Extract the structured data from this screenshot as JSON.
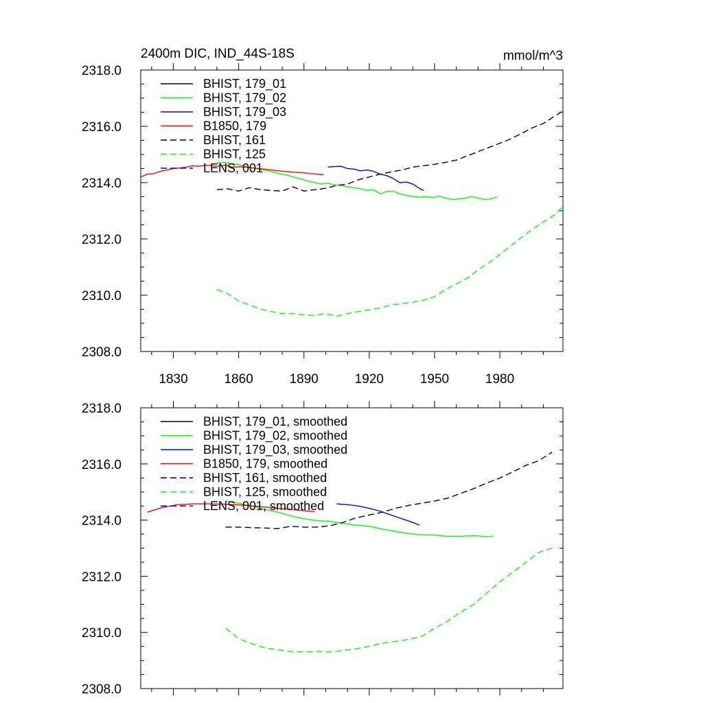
{
  "chart_data": [
    {
      "type": "line",
      "title": "2400m DIC, IND_44S-18S",
      "units": "mmol/m^3",
      "xlabel": "",
      "ylabel": "",
      "xlim": [
        1815,
        2009
      ],
      "ylim": [
        2308.0,
        2318.0
      ],
      "x_ticks": [
        1830,
        1860,
        1890,
        1920,
        1950,
        1980
      ],
      "y_ticks": [
        "2308.0",
        "2310.0",
        "2312.0",
        "2314.0",
        "2316.0",
        "2318.0"
      ],
      "grid": false,
      "legend_position": "top-left",
      "series": [
        {
          "name": "BHIST, 179_01",
          "color": "#000000",
          "dash": "solid",
          "x": [],
          "y": []
        },
        {
          "name": "BHIST, 179_02",
          "color": "#00ff00",
          "dash": "solid",
          "x": [
            1850,
            1853,
            1856,
            1859,
            1862,
            1865,
            1868,
            1871,
            1874,
            1877,
            1880,
            1883,
            1886,
            1889,
            1892,
            1895,
            1898,
            1901,
            1904,
            1907,
            1910,
            1913,
            1916,
            1919,
            1922,
            1925,
            1928,
            1931,
            1934,
            1937,
            1940,
            1943,
            1946,
            1949,
            1952,
            1955,
            1958,
            1961,
            1964,
            1967,
            1970,
            1973,
            1976,
            1979
          ],
          "y": [
            2314.7,
            2314.72,
            2314.68,
            2314.65,
            2314.6,
            2314.55,
            2314.5,
            2314.45,
            2314.42,
            2314.35,
            2314.3,
            2314.25,
            2314.18,
            2314.12,
            2314.05,
            2314.0,
            2313.95,
            2313.98,
            2313.92,
            2313.9,
            2313.85,
            2313.82,
            2313.78,
            2313.72,
            2313.75,
            2313.6,
            2313.68,
            2313.7,
            2313.6,
            2313.55,
            2313.5,
            2313.48,
            2313.5,
            2313.46,
            2313.52,
            2313.45,
            2313.4,
            2313.42,
            2313.45,
            2313.5,
            2313.45,
            2313.4,
            2313.42,
            2313.5
          ]
        },
        {
          "name": "BHIST, 179_03",
          "color": "#0000ff",
          "dash": "solid",
          "x": [
            1901,
            1904,
            1907,
            1910,
            1913,
            1916,
            1919,
            1922,
            1925,
            1928,
            1931,
            1934,
            1937,
            1940,
            1943,
            1945
          ],
          "y": [
            2314.55,
            2314.57,
            2314.58,
            2314.5,
            2314.48,
            2314.42,
            2314.45,
            2314.4,
            2314.3,
            2314.25,
            2314.15,
            2314.0,
            2314.02,
            2313.95,
            2313.8,
            2313.72
          ]
        },
        {
          "name": "B1850, 179",
          "color": "#ff0000",
          "dash": "solid",
          "x": [
            1815,
            1818,
            1821,
            1824,
            1827,
            1830,
            1833,
            1836,
            1839,
            1842,
            1845,
            1848,
            1851,
            1854,
            1857,
            1860,
            1863,
            1866,
            1869,
            1872,
            1875,
            1878,
            1881,
            1884,
            1887,
            1890,
            1893,
            1896,
            1899
          ],
          "y": [
            2314.2,
            2314.3,
            2314.32,
            2314.4,
            2314.45,
            2314.5,
            2314.52,
            2314.55,
            2314.6,
            2314.58,
            2314.62,
            2314.6,
            2314.58,
            2314.62,
            2314.55,
            2314.56,
            2314.55,
            2314.52,
            2314.5,
            2314.48,
            2314.45,
            2314.42,
            2314.4,
            2314.38,
            2314.36,
            2314.35,
            2314.32,
            2314.3,
            2314.28
          ]
        },
        {
          "name": "BHIST, 161",
          "color": "#000000",
          "dash": "dashed",
          "x": [
            1850,
            1855,
            1860,
            1865,
            1870,
            1875,
            1880,
            1885,
            1890,
            1895,
            1900,
            1905,
            1910,
            1915,
            1920,
            1925,
            1930,
            1935,
            1940,
            1945,
            1950,
            1955,
            1960,
            1965,
            1970,
            1975,
            1980,
            1985,
            1990,
            1995,
            2000,
            2005,
            2009
          ],
          "y": [
            2313.75,
            2313.78,
            2313.7,
            2313.82,
            2313.75,
            2313.72,
            2313.7,
            2313.85,
            2313.7,
            2313.75,
            2313.8,
            2313.9,
            2313.95,
            2314.1,
            2314.2,
            2314.3,
            2314.38,
            2314.45,
            2314.55,
            2314.6,
            2314.65,
            2314.72,
            2314.8,
            2314.95,
            2315.1,
            2315.25,
            2315.4,
            2315.55,
            2315.75,
            2315.95,
            2316.1,
            2316.35,
            2316.55
          ]
        },
        {
          "name": "BHIST, 125",
          "color": "#00ff00",
          "dash": "dashed",
          "x": [
            1850,
            1855,
            1860,
            1865,
            1870,
            1875,
            1880,
            1885,
            1890,
            1895,
            1900,
            1905,
            1910,
            1915,
            1920,
            1925,
            1930,
            1935,
            1940,
            1945,
            1950,
            1955,
            1960,
            1965,
            1970,
            1975,
            1980,
            1985,
            1990,
            1995,
            2000,
            2005,
            2009
          ],
          "y": [
            2310.2,
            2310.05,
            2309.8,
            2309.65,
            2309.5,
            2309.42,
            2309.35,
            2309.35,
            2309.3,
            2309.28,
            2309.35,
            2309.25,
            2309.35,
            2309.42,
            2309.48,
            2309.55,
            2309.65,
            2309.7,
            2309.75,
            2309.82,
            2309.95,
            2310.2,
            2310.4,
            2310.6,
            2310.9,
            2311.15,
            2311.45,
            2311.75,
            2312.05,
            2312.35,
            2312.6,
            2312.85,
            2313.15
          ]
        },
        {
          "name": "LENS, 001",
          "color": "#0000ff",
          "dash": "dashed",
          "x": [],
          "y": []
        }
      ]
    },
    {
      "type": "line",
      "title": "",
      "xlabel": "",
      "ylabel": "",
      "xlim": [
        1815,
        2009
      ],
      "ylim": [
        2308.0,
        2318.0
      ],
      "x_ticks": [
        1830,
        1860,
        1890,
        1920,
        1950,
        1980
      ],
      "y_ticks": [
        "2308.0",
        "2310.0",
        "2312.0",
        "2314.0",
        "2316.0",
        "2318.0"
      ],
      "grid": false,
      "legend_position": "top-left",
      "series": [
        {
          "name": "BHIST, 179_01, smoothed",
          "color": "#000000",
          "dash": "solid",
          "x": [],
          "y": []
        },
        {
          "name": "BHIST, 179_02, smoothed",
          "color": "#00ff00",
          "dash": "solid",
          "x": [
            1854,
            1860,
            1866,
            1872,
            1878,
            1884,
            1890,
            1896,
            1902,
            1908,
            1914,
            1920,
            1926,
            1932,
            1938,
            1944,
            1950,
            1956,
            1962,
            1968,
            1974,
            1977
          ],
          "y": [
            2314.68,
            2314.6,
            2314.5,
            2314.38,
            2314.28,
            2314.15,
            2314.05,
            2313.98,
            2313.95,
            2313.88,
            2313.82,
            2313.78,
            2313.68,
            2313.6,
            2313.52,
            2313.48,
            2313.47,
            2313.42,
            2313.42,
            2313.45,
            2313.4,
            2313.43
          ]
        },
        {
          "name": "BHIST, 179_03, smoothed",
          "color": "#0000ff",
          "dash": "solid",
          "x": [
            1905,
            1910,
            1915,
            1920,
            1925,
            1930,
            1935,
            1940,
            1943
          ],
          "y": [
            2314.58,
            2314.55,
            2314.5,
            2314.42,
            2314.32,
            2314.18,
            2314.05,
            2313.92,
            2313.82
          ]
        },
        {
          "name": "B1850, 179, smoothed",
          "color": "#ff0000",
          "dash": "solid",
          "x": [
            1818,
            1825,
            1832,
            1839,
            1846,
            1853,
            1860,
            1867,
            1874,
            1881,
            1888,
            1895
          ],
          "y": [
            2314.28,
            2314.45,
            2314.55,
            2314.58,
            2314.58,
            2314.57,
            2314.54,
            2314.5,
            2314.45,
            2314.4,
            2314.35,
            2314.3
          ]
        },
        {
          "name": "BHIST, 161, smoothed",
          "color": "#000000",
          "dash": "dashed",
          "x": [
            1854,
            1860,
            1866,
            1872,
            1878,
            1884,
            1890,
            1896,
            1902,
            1908,
            1914,
            1920,
            1926,
            1932,
            1938,
            1944,
            1950,
            1956,
            1962,
            1968,
            1974,
            1980,
            1986,
            1992,
            1998,
            2004
          ],
          "y": [
            2313.75,
            2313.75,
            2313.73,
            2313.72,
            2313.7,
            2313.78,
            2313.75,
            2313.75,
            2313.8,
            2313.92,
            2314.08,
            2314.18,
            2314.28,
            2314.42,
            2314.52,
            2314.6,
            2314.68,
            2314.78,
            2314.95,
            2315.12,
            2315.32,
            2315.5,
            2315.72,
            2315.95,
            2316.12,
            2316.42
          ]
        },
        {
          "name": "BHIST, 125, smoothed",
          "color": "#00ff00",
          "dash": "dashed",
          "x": [
            1854,
            1860,
            1866,
            1872,
            1878,
            1884,
            1890,
            1896,
            1902,
            1908,
            1914,
            1920,
            1926,
            1932,
            1938,
            1944,
            1950,
            1956,
            1962,
            1968,
            1974,
            1980,
            1986,
            1992,
            1998,
            2004
          ],
          "y": [
            2310.15,
            2309.78,
            2309.6,
            2309.45,
            2309.38,
            2309.32,
            2309.3,
            2309.32,
            2309.3,
            2309.36,
            2309.42,
            2309.5,
            2309.62,
            2309.68,
            2309.75,
            2309.85,
            2310.15,
            2310.4,
            2310.72,
            2311.0,
            2311.4,
            2311.8,
            2312.15,
            2312.5,
            2312.85,
            2313.0
          ]
        },
        {
          "name": "LENS, 001, smoothed",
          "color": "#0000ff",
          "dash": "dashed",
          "x": [],
          "y": []
        }
      ]
    }
  ]
}
